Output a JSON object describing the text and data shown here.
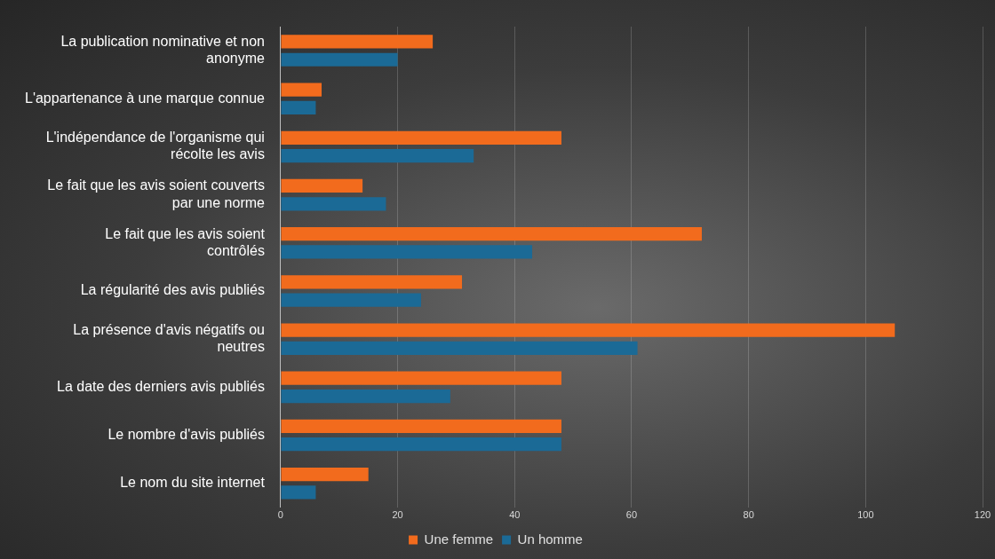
{
  "chart_data": {
    "type": "bar",
    "orientation": "horizontal",
    "categories": [
      "La publication nominative et non anonyme",
      "L'appartenance à une marque connue",
      "L'indépendance de l'organisme qui récolte les avis",
      "Le fait que les avis soient couverts par une norme",
      "Le fait que les avis soient contrôlés",
      "La régularité des avis publiés",
      "La présence d'avis négatifs ou neutres",
      "La date des derniers avis publiés",
      "Le nombre d'avis publiés",
      "Le nom du site internet"
    ],
    "series": [
      {
        "name": "Une femme",
        "color": "#f26b1d",
        "values": [
          26,
          7,
          48,
          14,
          72,
          31,
          105,
          48,
          48,
          15
        ]
      },
      {
        "name": "Un homme",
        "color": "#1b6a96",
        "values": [
          20,
          6,
          33,
          18,
          43,
          24,
          61,
          29,
          48,
          6
        ]
      }
    ],
    "xlim": [
      0,
      120
    ],
    "xticks": [
      0,
      20,
      40,
      60,
      80,
      100,
      120
    ],
    "grid": "x",
    "legend": "bottom"
  }
}
